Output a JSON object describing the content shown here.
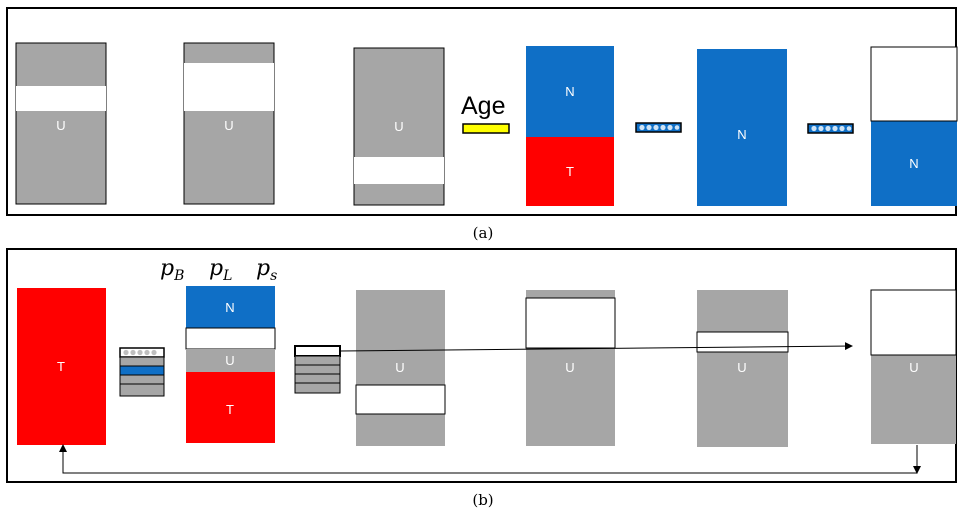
{
  "colors": {
    "gray": "#a6a6a6",
    "blue": "#0f6fc6",
    "red": "#ff0000",
    "yellow": "#ffff00",
    "white": "#ffffff",
    "black": "#000000"
  },
  "labels": {
    "unknown": "U",
    "normal": "N",
    "tumor": "T",
    "age": "Age"
  },
  "panel_a": {
    "caption": "(a)"
  },
  "panel_b": {
    "caption": "(b)",
    "p_letter": "p",
    "p_b_sub": "B",
    "p_l_sub": "L",
    "p_s_sub": "s"
  },
  "icons": {
    "age_bar": "yellow-bar-icon",
    "filter": "beaded-filter-icon",
    "stack": "layered-stack-icon"
  }
}
